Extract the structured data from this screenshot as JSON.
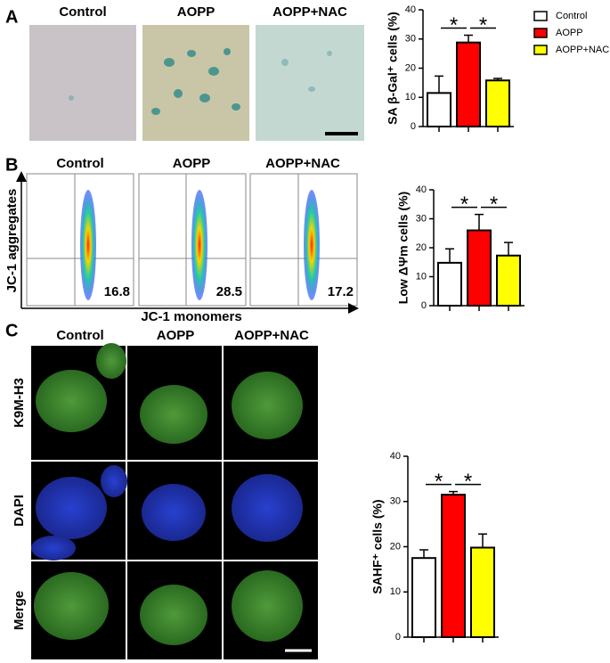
{
  "panel_labels": [
    "A",
    "B",
    "C"
  ],
  "panel_a": {
    "columns": [
      "Control",
      "AOPP",
      "AOPP+NAC"
    ]
  },
  "panel_b": {
    "columns": [
      "Control",
      "AOPP",
      "AOPP+NAC"
    ],
    "percentages": [
      "16.8",
      "28.5",
      "17.2"
    ],
    "y_label": "JC-1 aggregates",
    "x_label": "JC-1 monomers"
  },
  "panel_c": {
    "columns": [
      "Control",
      "AOPP",
      "AOPP+NAC"
    ],
    "rows": [
      "K9M-H3",
      "DAPI",
      "Merge"
    ]
  },
  "legend": [
    {
      "name": "Control",
      "color": "#ffffff"
    },
    {
      "name": "AOPP",
      "color": "#ff0000"
    },
    {
      "name": "AOPP+NAC",
      "color": "#ffff00"
    }
  ],
  "chart_data": [
    {
      "type": "bar",
      "y_label": "SA β-Gal⁺ cells (%)",
      "categories": [
        null,
        null,
        null
      ],
      "values": [
        11.5,
        28.8,
        15.8
      ],
      "errors": [
        5.8,
        2.5,
        0.7
      ],
      "colors": [
        "#ffffff",
        "#ff0000",
        "#ffff00"
      ],
      "ylim": [
        0,
        40
      ],
      "yticks": [
        0,
        10,
        20,
        30,
        40
      ],
      "annotations": [
        "*",
        "*"
      ]
    },
    {
      "type": "bar",
      "y_label": "Low ΔΨm cells (%)",
      "categories": [
        null,
        null,
        null
      ],
      "values": [
        14.8,
        26,
        17.3
      ],
      "errors": [
        4.8,
        5.5,
        4.5
      ],
      "colors": [
        "#ffffff",
        "#ff0000",
        "#ffff00"
      ],
      "ylim": [
        0,
        40
      ],
      "yticks": [
        0,
        10,
        20,
        30,
        40
      ],
      "annotations": [
        "*",
        "*"
      ]
    },
    {
      "type": "bar",
      "y_label": "SAHF⁺ cells (%)",
      "categories": [
        null,
        null,
        null
      ],
      "values": [
        17.5,
        31.5,
        19.8
      ],
      "errors": [
        1.8,
        0.7,
        3
      ],
      "colors": [
        "#ffffff",
        "#ff0000",
        "#ffff00"
      ],
      "ylim": [
        0,
        40
      ],
      "yticks": [
        0,
        10,
        20,
        30,
        40
      ],
      "annotations": [
        "*",
        "*"
      ]
    }
  ]
}
